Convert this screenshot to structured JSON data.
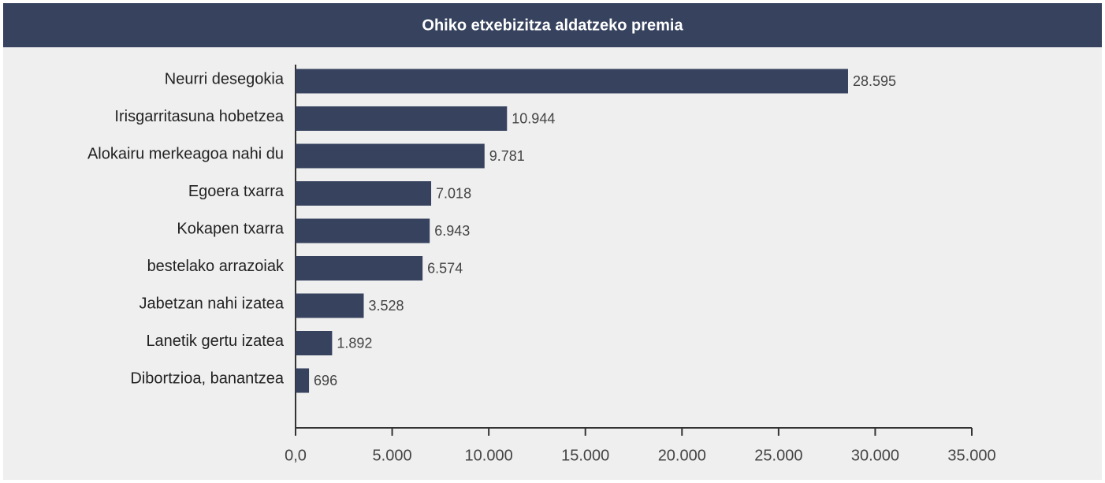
{
  "chart_data": {
    "type": "bar",
    "orientation": "horizontal",
    "title": "Ohiko etxebizitza aldatzeko premia",
    "categories": [
      "Neurri desegokia",
      "Irisgarritasuna hobetzea",
      "Alokairu merkeagoa nahi du",
      "Egoera txarra",
      "Kokapen txarra",
      "bestelako arrazoiak",
      "Jabetzan nahi izatea",
      "Lanetik gertu izatea",
      "Dibortzioa, banantzea"
    ],
    "values": [
      28595,
      10944,
      9781,
      7018,
      6943,
      6574,
      3528,
      1892,
      696
    ],
    "value_labels": [
      "28.595",
      "10.944",
      "9.781",
      "7.018",
      "6.943",
      "6.574",
      "3.528",
      "1.892",
      "696"
    ],
    "color": "#36425e",
    "xlim": [
      0,
      35000
    ],
    "xticks": [
      {
        "value": 0,
        "label": "0,0"
      },
      {
        "value": 5000,
        "label": "5.000"
      },
      {
        "value": 10000,
        "label": "10.000"
      },
      {
        "value": 15000,
        "label": "15.000"
      },
      {
        "value": 20000,
        "label": "20.000"
      },
      {
        "value": 25000,
        "label": "25.000"
      },
      {
        "value": 30000,
        "label": "30.000"
      },
      {
        "value": 35000,
        "label": "35.000"
      }
    ],
    "grid": false
  }
}
